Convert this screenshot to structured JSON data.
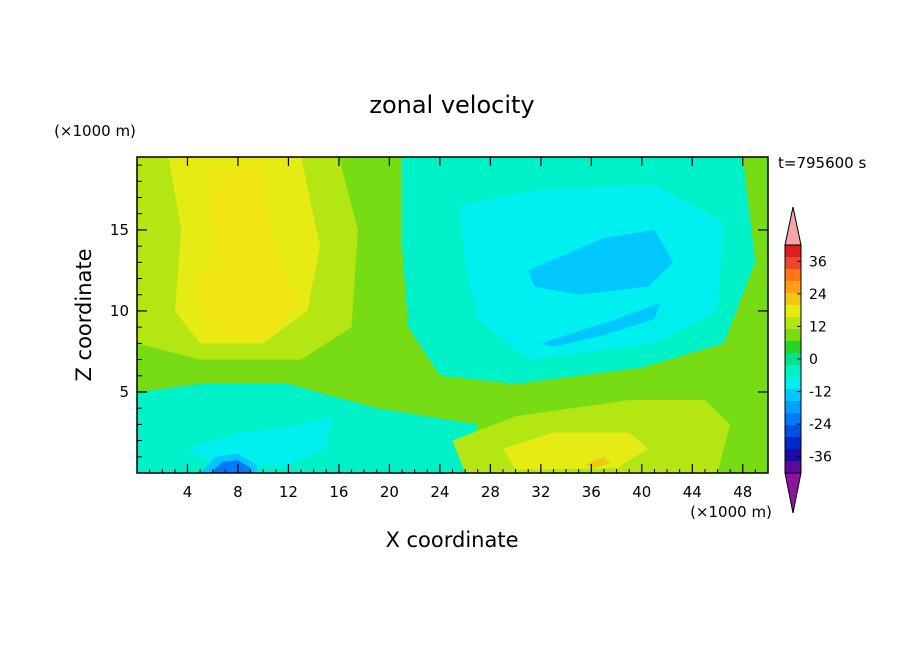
{
  "chart_data": {
    "type": "heatmap",
    "title": "zonal velocity",
    "xlabel": "X coordinate",
    "ylabel": "Z coordinate",
    "x_unit": "(×1000 m)",
    "y_unit": "(×1000 m)",
    "time_label": "t=795600 s",
    "xlim": [
      0,
      50
    ],
    "ylim": [
      0,
      19.5
    ],
    "x_ticks": [
      4,
      8,
      12,
      16,
      20,
      24,
      28,
      32,
      36,
      40,
      44,
      48
    ],
    "y_ticks": [
      5,
      10,
      15
    ],
    "colorbar": {
      "tick_labels": [
        "36",
        "24",
        "12",
        "0",
        "-12",
        "-24",
        "-36"
      ],
      "tick_values": [
        36,
        24,
        12,
        0,
        -12,
        -24,
        -36
      ],
      "range": [
        -42,
        42
      ],
      "colors_top_to_bottom": [
        "#dc1e1e",
        "#f04628",
        "#ff7814",
        "#ffa014",
        "#f0c814",
        "#e6eb14",
        "#b4e614",
        "#78dc14",
        "#28d228",
        "#00e28c",
        "#00f0c8",
        "#00f0f0",
        "#00c8ff",
        "#00a0ff",
        "#0078ff",
        "#0050e6",
        "#0028c8",
        "#1e0aa0",
        "#5a0aa0"
      ],
      "over_color": "#f4a6a6",
      "under_color": "#8c14a0"
    },
    "contour_fields": [
      {
        "color": "#b4e614",
        "polygon": [
          [
            0,
            11.5
          ],
          [
            0,
            19.5
          ],
          [
            16,
            19.5
          ],
          [
            17.5,
            15
          ],
          [
            17,
            9
          ],
          [
            13,
            7
          ],
          [
            5,
            7
          ],
          [
            0,
            8
          ]
        ]
      },
      {
        "color": "#e6eb14",
        "polygon": [
          [
            2.5,
            19.5
          ],
          [
            13,
            19.5
          ],
          [
            14.5,
            14
          ],
          [
            13.5,
            10
          ],
          [
            10,
            8
          ],
          [
            5,
            8
          ],
          [
            3,
            10
          ],
          [
            3.5,
            15
          ]
        ]
      },
      {
        "color": "#f0e614",
        "polygon": [
          [
            5.5,
            18.5
          ],
          [
            10,
            19.3
          ],
          [
            10.5,
            15
          ],
          [
            12.8,
            10.5
          ],
          [
            10,
            8.2
          ],
          [
            5.5,
            8.5
          ],
          [
            4.5,
            11.5
          ],
          [
            6,
            14
          ]
        ]
      },
      {
        "color": "#00f0c8",
        "polygon": [
          [
            21,
            19.5
          ],
          [
            48,
            19.5
          ],
          [
            49,
            13
          ],
          [
            46.5,
            8
          ],
          [
            40,
            6.5
          ],
          [
            30,
            5.5
          ],
          [
            24,
            6
          ],
          [
            21.5,
            9
          ],
          [
            21,
            14
          ]
        ]
      },
      {
        "color": "#00f0f0",
        "polygon": [
          [
            25.5,
            16.5
          ],
          [
            32,
            17.5
          ],
          [
            41,
            17.8
          ],
          [
            46.5,
            15.5
          ],
          [
            46,
            10
          ],
          [
            41,
            8
          ],
          [
            31,
            7
          ],
          [
            27,
            9.5
          ],
          [
            26,
            13
          ]
        ]
      },
      {
        "color": "#00c8ff",
        "polygon": [
          [
            31,
            12.5
          ],
          [
            37,
            14.5
          ],
          [
            41,
            15
          ],
          [
            42.5,
            13
          ],
          [
            40.5,
            11.5
          ],
          [
            35,
            11
          ],
          [
            31.5,
            11.5
          ]
        ]
      },
      {
        "color": "#00c8ff",
        "polygon": [
          [
            32,
            8
          ],
          [
            38,
            9.5
          ],
          [
            41.5,
            10.5
          ],
          [
            41,
            9.5
          ],
          [
            37,
            8.5
          ],
          [
            33,
            7.8
          ]
        ]
      },
      {
        "color": "#00f0c8",
        "polygon": [
          [
            0,
            0
          ],
          [
            0,
            5
          ],
          [
            5,
            5.5
          ],
          [
            12,
            5.5
          ],
          [
            19,
            4
          ],
          [
            27,
            3
          ],
          [
            26,
            0
          ]
        ]
      },
      {
        "color": "#00f0f0",
        "polygon": [
          [
            4,
            1.5
          ],
          [
            8,
            2.5
          ],
          [
            12,
            2.8
          ],
          [
            15.5,
            3.5
          ],
          [
            15,
            1.5
          ],
          [
            12,
            0.5
          ],
          [
            6,
            0.5
          ]
        ]
      },
      {
        "color": "#00c8ff",
        "polygon": [
          [
            5,
            0
          ],
          [
            6.2,
            1
          ],
          [
            8,
            1.2
          ],
          [
            9.5,
            0.5
          ],
          [
            9.5,
            0
          ]
        ]
      },
      {
        "color": "#0078ff",
        "polygon": [
          [
            5.8,
            0
          ],
          [
            6.8,
            0.7
          ],
          [
            8,
            0.8
          ],
          [
            9,
            0.3
          ],
          [
            9,
            0
          ]
        ]
      },
      {
        "color": "#b4e614",
        "polygon": [
          [
            25,
            2
          ],
          [
            30,
            3.5
          ],
          [
            39,
            4.5
          ],
          [
            45,
            4.5
          ],
          [
            47,
            3
          ],
          [
            46,
            0
          ],
          [
            26,
            0
          ]
        ]
      },
      {
        "color": "#e6eb14",
        "polygon": [
          [
            29,
            1.5
          ],
          [
            33,
            2.5
          ],
          [
            39,
            2.5
          ],
          [
            40.5,
            1.5
          ],
          [
            38,
            0.3
          ],
          [
            30,
            0.2
          ]
        ]
      },
      {
        "color": "#f0c814",
        "polygon": [
          [
            35.5,
            0.5
          ],
          [
            37,
            1
          ],
          [
            37.5,
            0.6
          ],
          [
            36.2,
            0.3
          ]
        ]
      }
    ]
  }
}
